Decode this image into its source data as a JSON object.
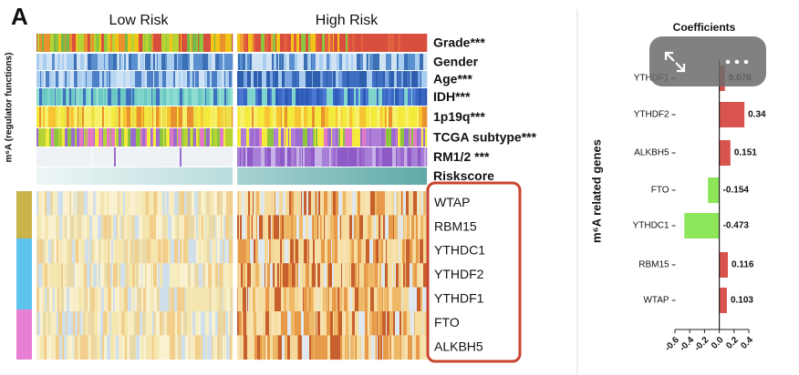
{
  "panel_label": "A",
  "groups": [
    "Low Risk",
    "High Risk"
  ],
  "heatmap_axis_label": "m⁶A (regulator functions)",
  "annotations": [
    "Grade***",
    "Gender",
    "Age***",
    "IDH***",
    "1p19q***",
    "TCGA subtype***",
    "RM1/2 ***",
    "Riskscore"
  ],
  "genes": [
    "WTAP",
    "RBM15",
    "YTHDC1",
    "YTHDF2",
    "YTHDF1",
    "FTO",
    "ALKBH5"
  ],
  "chart_data": {
    "type": "hbar",
    "title": "Coefficients",
    "y_label": "m⁶A related genes",
    "categories": [
      "YTHDF1",
      "YTHDF2",
      "ALKBH5",
      "FTO",
      "YTHDC1",
      "RBM15",
      "WTAP"
    ],
    "values": [
      0.076,
      0.34,
      0.151,
      -0.154,
      -0.473,
      0.116,
      0.103
    ],
    "colors": [
      "#d9534f",
      "#d9534f",
      "#d9534f",
      "#8ee65a",
      "#8ee65a",
      "#d9534f",
      "#d9534f"
    ],
    "xlim": [
      -0.6,
      0.4
    ],
    "xticks": [
      -0.6,
      -0.4,
      -0.2,
      {
        "value": 0,
        "label": "0.0"
      },
      0.2,
      0.4
    ]
  }
}
